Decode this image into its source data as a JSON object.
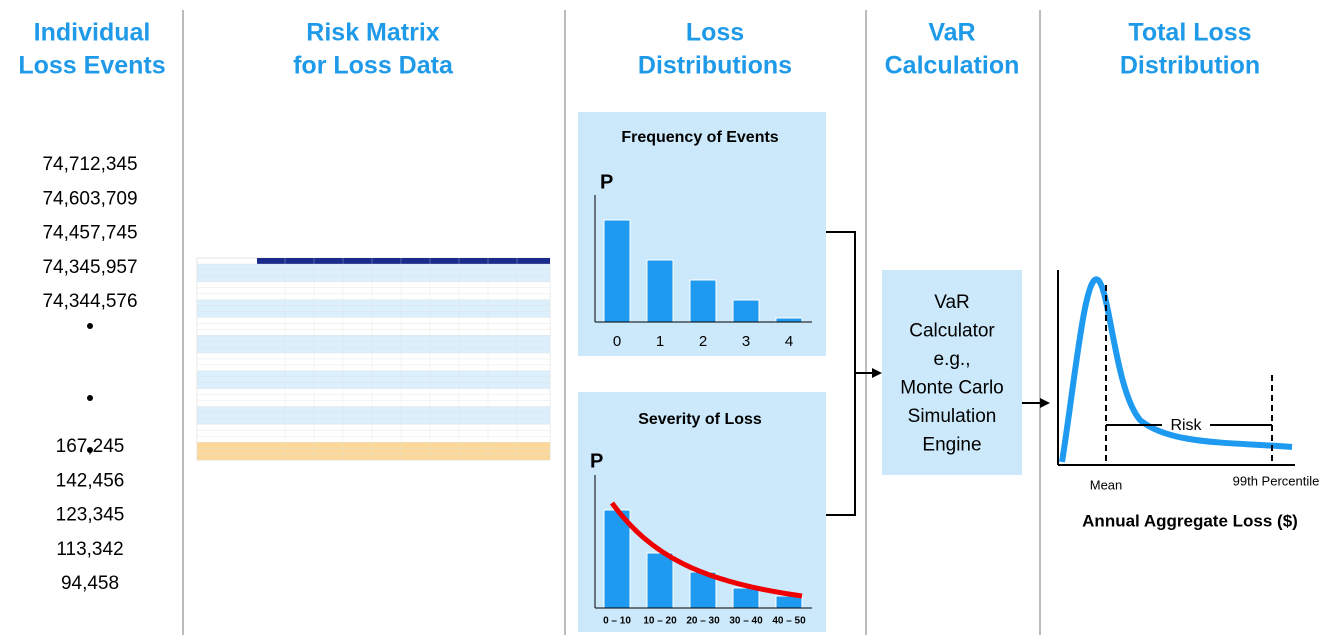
{
  "columns": [
    {
      "title": [
        "Individual",
        "Loss Events"
      ]
    },
    {
      "title": [
        "Risk Matrix",
        "for Loss Data"
      ]
    },
    {
      "title": [
        "Loss",
        "Distributions"
      ]
    },
    {
      "title": [
        "VaR",
        "Calculation"
      ]
    },
    {
      "title": [
        "Total Loss",
        "Distribution"
      ]
    }
  ],
  "loss_events": {
    "top": [
      "74,712,345",
      "74,603,709",
      "74,457,745",
      "74,345,957",
      "74,344,576"
    ],
    "bottom": [
      "167,245",
      "142,456",
      "123,345",
      "113,342",
      "94,458"
    ]
  },
  "frequency": {
    "title": "Frequency of Events",
    "axis": "P",
    "labels": [
      "0",
      "1",
      "2",
      "3",
      "4"
    ]
  },
  "severity": {
    "title": "Severity of Loss",
    "axis": "P",
    "labels": [
      "0 – 10",
      "10 – 20",
      "20 – 30",
      "30 – 40",
      "40 – 50"
    ]
  },
  "var_box": {
    "lines": [
      "VaR",
      "Calculator",
      "e.g.,",
      "Monte Carlo",
      "Simulation",
      "Engine"
    ]
  },
  "total": {
    "risk": "Risk",
    "mean": "Mean",
    "percentile": "99th Percentile",
    "axis_label": "Annual Aggregate Loss ($)"
  }
}
